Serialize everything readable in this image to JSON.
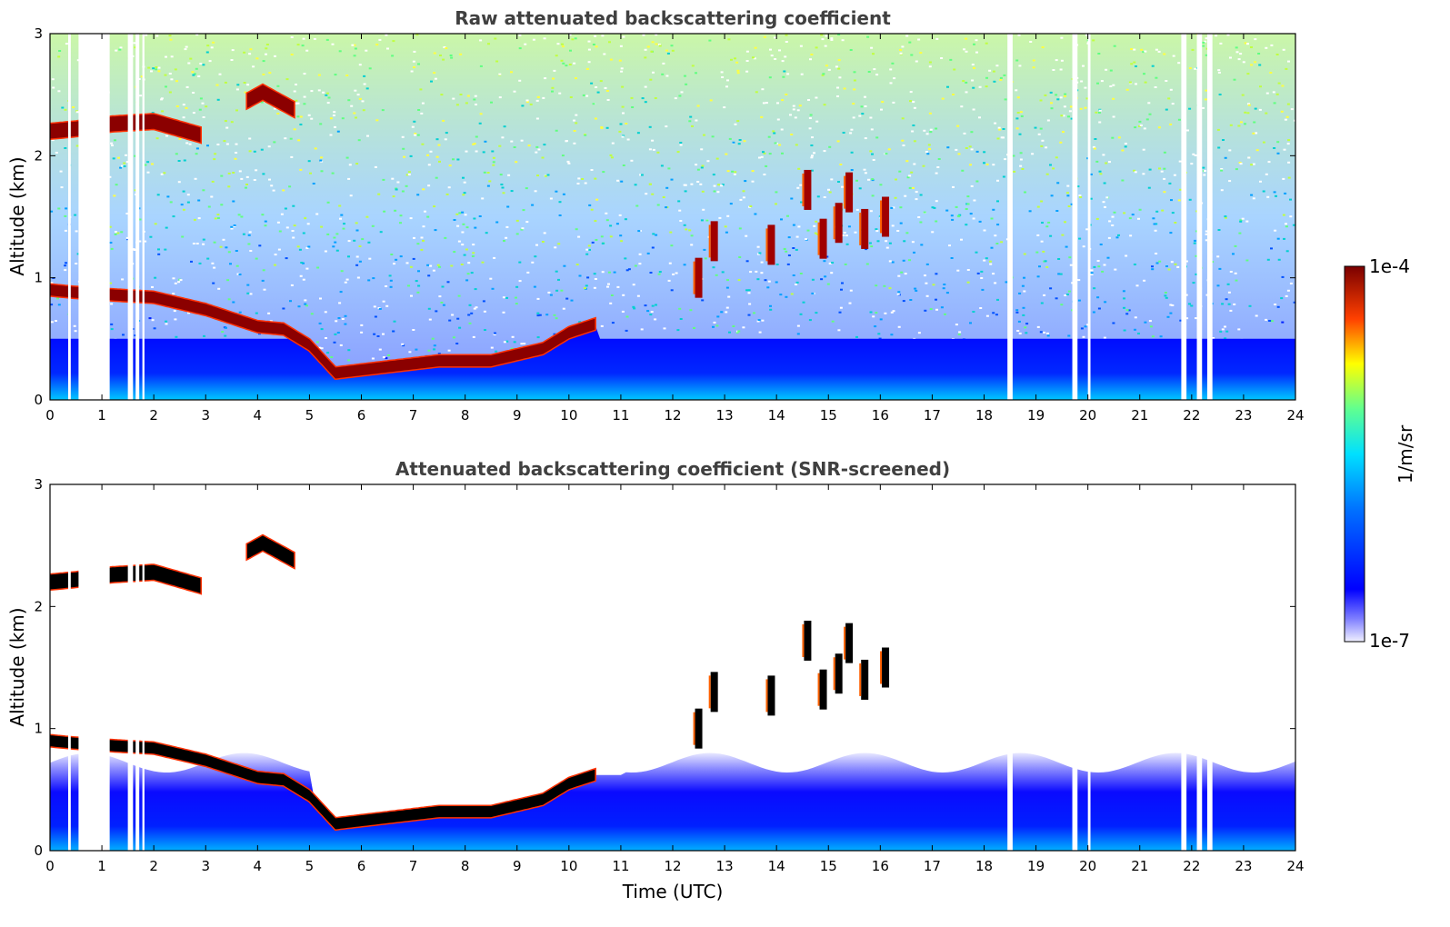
{
  "chart_data": [
    {
      "type": "heatmap",
      "title": "Raw attenuated backscattering coefficient",
      "xlabel": "",
      "ylabel": "Altitude (km)",
      "xlim": [
        0,
        24
      ],
      "ylim": [
        0,
        3
      ],
      "x_ticks": [
        "0",
        "1",
        "2",
        "3",
        "4",
        "5",
        "6",
        "7",
        "8",
        "9",
        "10",
        "11",
        "12",
        "13",
        "14",
        "15",
        "16",
        "17",
        "18",
        "19",
        "20",
        "21",
        "22",
        "23",
        "24"
      ],
      "y_ticks": [
        "0",
        "1",
        "2",
        "3"
      ],
      "layers": [
        {
          "kind": "cloud",
          "t": [
            0,
            0.5,
            1.2,
            2.0,
            2.9
          ],
          "h": [
            2.2,
            2.22,
            2.26,
            2.28,
            2.17
          ]
        },
        {
          "kind": "cloud",
          "t": [
            3.8,
            4.1,
            4.4,
            4.7
          ],
          "h": [
            2.45,
            2.52,
            2.45,
            2.38
          ]
        },
        {
          "kind": "aerosol_top",
          "t": [
            0,
            0.5,
            1.2,
            2.0,
            3.0,
            4.0,
            4.5,
            5.0,
            5.5,
            6.5,
            7.5,
            8.5,
            9.5,
            10.0,
            10.5
          ],
          "h": [
            0.9,
            0.88,
            0.86,
            0.84,
            0.74,
            0.6,
            0.58,
            0.45,
            0.22,
            0.27,
            0.32,
            0.32,
            0.42,
            0.55,
            0.62
          ]
        },
        {
          "kind": "cumulus",
          "t": [
            12.5,
            12.8,
            13.9,
            14.6,
            14.9,
            15.2,
            15.4,
            15.7,
            16.1
          ],
          "h": [
            1.0,
            1.3,
            1.27,
            1.72,
            1.32,
            1.45,
            1.7,
            1.4,
            1.5
          ]
        }
      ],
      "missing_intervals": [
        [
          0.35,
          0.4
        ],
        [
          0.55,
          1.15
        ],
        [
          1.5,
          1.6
        ],
        [
          1.65,
          1.72
        ],
        [
          1.78,
          1.82
        ],
        [
          18.45,
          18.55
        ],
        [
          19.7,
          19.8
        ],
        [
          20.0,
          20.05
        ],
        [
          21.8,
          21.9
        ],
        [
          22.1,
          22.2
        ],
        [
          22.3,
          22.4
        ]
      ]
    },
    {
      "type": "heatmap",
      "title": "Attenuated backscattering coefficient (SNR-screened)",
      "xlabel": "Time (UTC)",
      "ylabel": "Altitude (km)",
      "xlim": [
        0,
        24
      ],
      "ylim": [
        0,
        3
      ],
      "x_ticks": [
        "0",
        "1",
        "2",
        "3",
        "4",
        "5",
        "6",
        "7",
        "8",
        "9",
        "10",
        "11",
        "12",
        "13",
        "14",
        "15",
        "16",
        "17",
        "18",
        "19",
        "20",
        "21",
        "22",
        "23",
        "24"
      ],
      "y_ticks": [
        "0",
        "1",
        "2",
        "3"
      ],
      "note_screening": "values below SNR threshold removed (white)"
    }
  ],
  "colorbar": {
    "label": "1/m/sr",
    "max_label": "1e-4",
    "min_label": "1e-7",
    "scale": "log",
    "range": [
      1e-07,
      0.0001
    ],
    "colormap": [
      "#e6e6ff",
      "#0000ff",
      "#00ffff",
      "#ffff00",
      "#ff0000",
      "#800000"
    ]
  }
}
